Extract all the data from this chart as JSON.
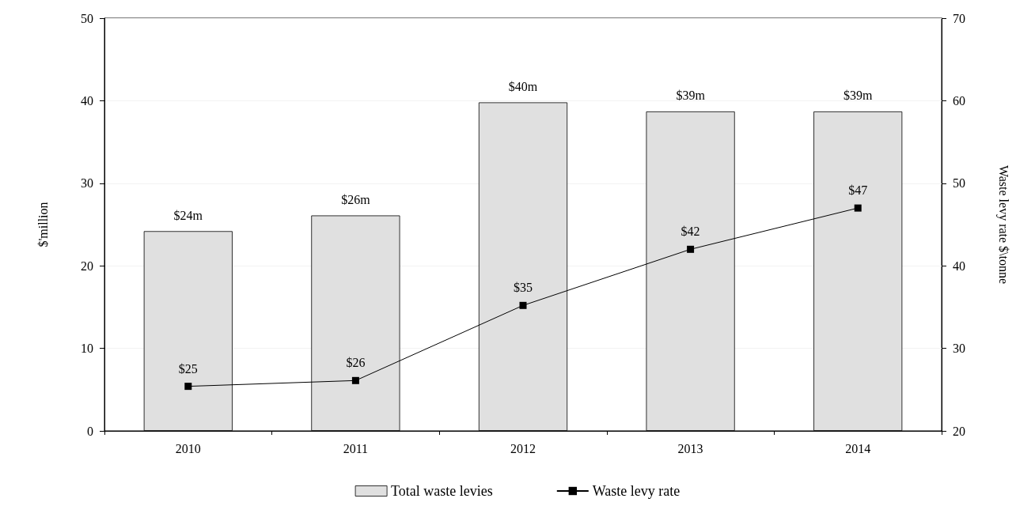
{
  "chart_data": {
    "type": "bar",
    "categories": [
      "2010",
      "2011",
      "2012",
      "2013",
      "2014"
    ],
    "ylabel": "$'million",
    "y2label": "Waste levy rate $\\tonne",
    "ylim": [
      0,
      50
    ],
    "yticks": [
      0,
      10,
      20,
      30,
      40,
      50
    ],
    "y2lim": [
      20,
      70
    ],
    "y2ticks": [
      20,
      30,
      40,
      50,
      60,
      70
    ],
    "grid": "y",
    "legend": "bottom",
    "marker": "square",
    "line_style": "solid",
    "series": [
      {
        "name": "Total waste levies",
        "color": "#e0e0e0",
        "values": [
          24.2,
          26.1,
          39.8,
          38.7,
          38.7
        ],
        "value_labels": [
          "$24m",
          "$26m",
          "$40m",
          "$39m",
          "$39m"
        ]
      },
      {
        "name": "Waste levy rate",
        "type": "line",
        "axis": "y2",
        "color": "#000000",
        "values": [
          25.4,
          26.1,
          35.2,
          42.0,
          47.0
        ],
        "value_labels": [
          "$25",
          "$26",
          "$35",
          "$42",
          "$47"
        ]
      }
    ]
  }
}
